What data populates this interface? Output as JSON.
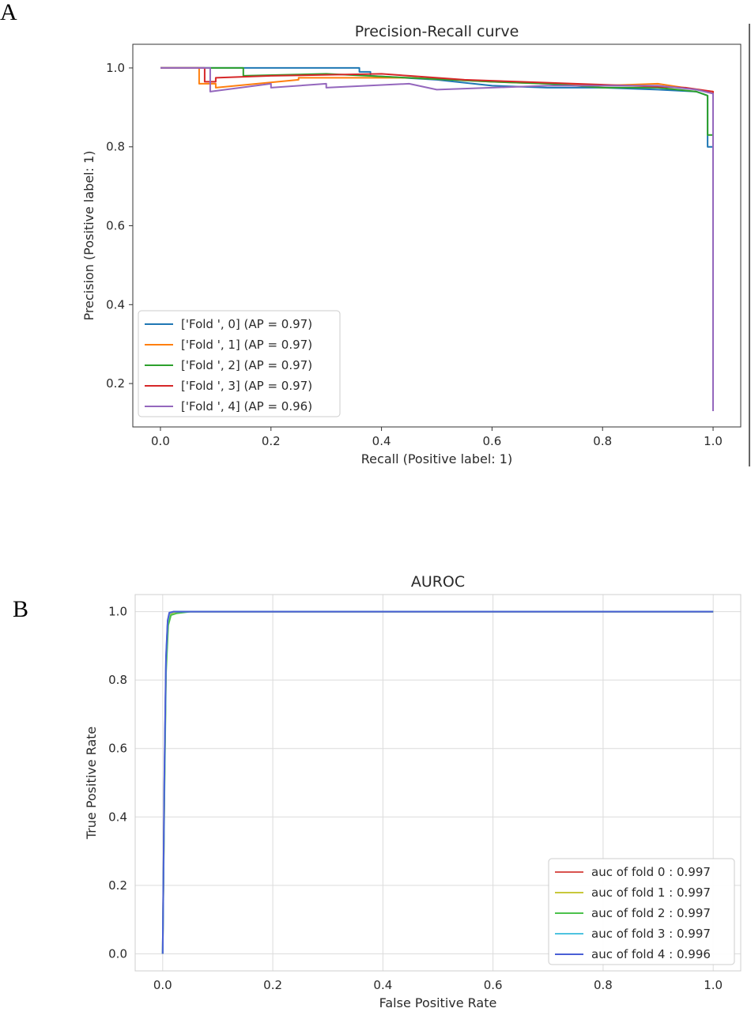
{
  "panel_labels": {
    "a": "A",
    "b": "B"
  },
  "chart_data": [
    {
      "type": "line",
      "title": "Precision-Recall curve",
      "xlabel": "Recall (Positive label: 1)",
      "ylabel": "Precision (Positive label: 1)",
      "xlim": [
        -0.05,
        1.05
      ],
      "ylim": [
        0.09,
        1.06
      ],
      "xticks": [
        "0.0",
        "0.2",
        "0.4",
        "0.6",
        "0.8",
        "1.0"
      ],
      "yticks": [
        "0.2",
        "0.4",
        "0.6",
        "0.8",
        "1.0"
      ],
      "grid": false,
      "legend": "lower-left",
      "series": [
        {
          "name": "['Fold ', 0] (AP = 0.97)",
          "color": "#1f77b4",
          "x": [
            0.0,
            0.08,
            0.08,
            0.36,
            0.36,
            0.38,
            0.38,
            0.5,
            0.6,
            0.7,
            0.8,
            0.9,
            0.97,
            0.99,
            0.99,
            1.0,
            1.0
          ],
          "y": [
            1.0,
            1.0,
            1.0,
            1.0,
            0.99,
            0.99,
            0.98,
            0.97,
            0.955,
            0.95,
            0.95,
            0.945,
            0.94,
            0.93,
            0.8,
            0.8,
            0.13
          ]
        },
        {
          "name": "['Fold ', 1] (AP = 0.97)",
          "color": "#ff7f0e",
          "x": [
            0.0,
            0.07,
            0.07,
            0.1,
            0.1,
            0.25,
            0.25,
            0.45,
            0.6,
            0.7,
            0.8,
            0.9,
            0.97,
            1.0,
            1.0
          ],
          "y": [
            1.0,
            1.0,
            0.96,
            0.96,
            0.95,
            0.97,
            0.975,
            0.975,
            0.965,
            0.96,
            0.955,
            0.96,
            0.945,
            0.94,
            0.13
          ]
        },
        {
          "name": "['Fold ', 2] (AP = 0.97)",
          "color": "#2ca02c",
          "x": [
            0.0,
            0.08,
            0.08,
            0.15,
            0.15,
            0.3,
            0.45,
            0.6,
            0.7,
            0.8,
            0.9,
            0.97,
            0.99,
            0.99,
            1.0,
            1.0
          ],
          "y": [
            1.0,
            1.0,
            1.0,
            1.0,
            0.98,
            0.985,
            0.975,
            0.965,
            0.96,
            0.95,
            0.95,
            0.94,
            0.93,
            0.83,
            0.83,
            0.13
          ]
        },
        {
          "name": "['Fold ', 3] (AP = 0.97)",
          "color": "#d62728",
          "x": [
            0.0,
            0.08,
            0.08,
            0.1,
            0.1,
            0.2,
            0.4,
            0.45,
            0.55,
            0.65,
            0.75,
            0.85,
            0.95,
            1.0,
            1.0
          ],
          "y": [
            1.0,
            1.0,
            0.965,
            0.965,
            0.975,
            0.98,
            0.985,
            0.98,
            0.97,
            0.965,
            0.96,
            0.955,
            0.95,
            0.94,
            0.13
          ]
        },
        {
          "name": "['Fold ', 4] (AP = 0.96)",
          "color": "#9467bd",
          "x": [
            0.0,
            0.09,
            0.09,
            0.2,
            0.2,
            0.3,
            0.3,
            0.45,
            0.5,
            0.6,
            0.7,
            0.8,
            0.9,
            0.97,
            1.0,
            1.0
          ],
          "y": [
            1.0,
            1.0,
            0.94,
            0.96,
            0.95,
            0.96,
            0.95,
            0.96,
            0.945,
            0.95,
            0.955,
            0.955,
            0.955,
            0.945,
            0.935,
            0.13
          ]
        }
      ]
    },
    {
      "type": "line",
      "title": "AUROC",
      "xlabel": "False Positive Rate",
      "ylabel": "True Positive Rate",
      "xlim": [
        -0.05,
        1.05
      ],
      "ylim": [
        -0.05,
        1.05
      ],
      "xticks": [
        "0.0",
        "0.2",
        "0.4",
        "0.6",
        "0.8",
        "1.0"
      ],
      "yticks": [
        "0.0",
        "0.2",
        "0.4",
        "0.6",
        "0.8",
        "1.0"
      ],
      "grid": true,
      "legend": "lower-right",
      "series": [
        {
          "name": "auc of fold 0 : 0.997",
          "color": "#d9534f",
          "x": [
            0.0,
            0.003,
            0.006,
            0.009,
            0.012,
            0.02,
            0.05,
            1.0
          ],
          "y": [
            0.0,
            0.5,
            0.85,
            0.97,
            0.995,
            1.0,
            1.0,
            1.0
          ]
        },
        {
          "name": "auc of fold 1 : 0.997",
          "color": "#c8c83a",
          "x": [
            0.0,
            0.003,
            0.006,
            0.009,
            0.013,
            0.02,
            0.05,
            1.0
          ],
          "y": [
            0.0,
            0.48,
            0.84,
            0.96,
            0.99,
            0.998,
            1.0,
            1.0
          ]
        },
        {
          "name": "auc of fold 2 : 0.997",
          "color": "#4cc24c",
          "x": [
            0.0,
            0.003,
            0.006,
            0.01,
            0.015,
            0.025,
            0.05,
            1.0
          ],
          "y": [
            0.0,
            0.45,
            0.82,
            0.96,
            0.99,
            0.995,
            1.0,
            1.0
          ]
        },
        {
          "name": "auc of fold 3 : 0.997",
          "color": "#4fc3e0",
          "x": [
            0.0,
            0.003,
            0.006,
            0.009,
            0.012,
            0.02,
            0.05,
            1.0
          ],
          "y": [
            0.0,
            0.5,
            0.86,
            0.97,
            0.995,
            1.0,
            1.0,
            1.0
          ]
        },
        {
          "name": "auc of fold 4 : 0.996",
          "color": "#4a5fd6",
          "x": [
            0.0,
            0.003,
            0.006,
            0.009,
            0.012,
            0.02,
            0.05,
            1.0
          ],
          "y": [
            0.0,
            0.52,
            0.87,
            0.975,
            0.997,
            1.0,
            1.0,
            1.0
          ]
        }
      ]
    }
  ]
}
